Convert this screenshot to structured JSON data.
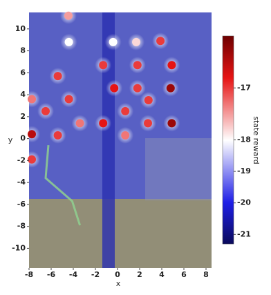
{
  "chart_data": {
    "type": "scatter",
    "x_label": "x",
    "y_label": "y",
    "colorbar_label": "state reward",
    "xlim": [
      -8,
      8.5
    ],
    "ylim": [
      -11.8,
      11.5
    ],
    "xticks": [
      -8,
      -6,
      -4,
      -2,
      0,
      2,
      4,
      6,
      8
    ],
    "yticks": [
      -10,
      -8,
      -6,
      -4,
      -2,
      0,
      2,
      4,
      6,
      8,
      10
    ],
    "clim": [
      -21.3,
      -16
    ],
    "cmid": -18,
    "cticks": [
      -21,
      -20,
      -19,
      -18,
      -17
    ],
    "points": {
      "x": [
        -4.44,
        3.88,
        1.69,
        -4.4,
        -0.4,
        -1.3,
        1.8,
        4.9,
        -5.4,
        -0.3,
        1.8,
        4.8,
        -4.4,
        2.8,
        -7.75,
        -6.5,
        0.7,
        -3.4,
        -1.3,
        2.75,
        4.9,
        -7.75,
        -5.4,
        0.7,
        -7.75
      ],
      "y": [
        11.2,
        8.9,
        8.8,
        8.8,
        8.8,
        6.7,
        6.7,
        6.7,
        5.7,
        4.6,
        4.6,
        4.6,
        3.6,
        3.5,
        3.6,
        2.5,
        2.5,
        1.4,
        1.4,
        1.4,
        1.4,
        0.4,
        0.3,
        0.3,
        -1.9
      ],
      "values": [
        -17.5,
        -17,
        -17.8,
        -18,
        -18,
        -17,
        -17,
        -16.8,
        -17,
        -16.8,
        -17,
        -16.3,
        -17,
        -17,
        -17.3,
        -17,
        -17,
        -17.3,
        -16.8,
        -17,
        -16.3,
        -16.5,
        -17,
        -17.3,
        -17
      ]
    },
    "trajectory": {
      "color": "#8fd08f",
      "x": [
        -6.25,
        -6.5,
        -4.1,
        -3.4
      ],
      "y": [
        -0.6,
        -3.6,
        -5.7,
        -7.9
      ]
    }
  }
}
